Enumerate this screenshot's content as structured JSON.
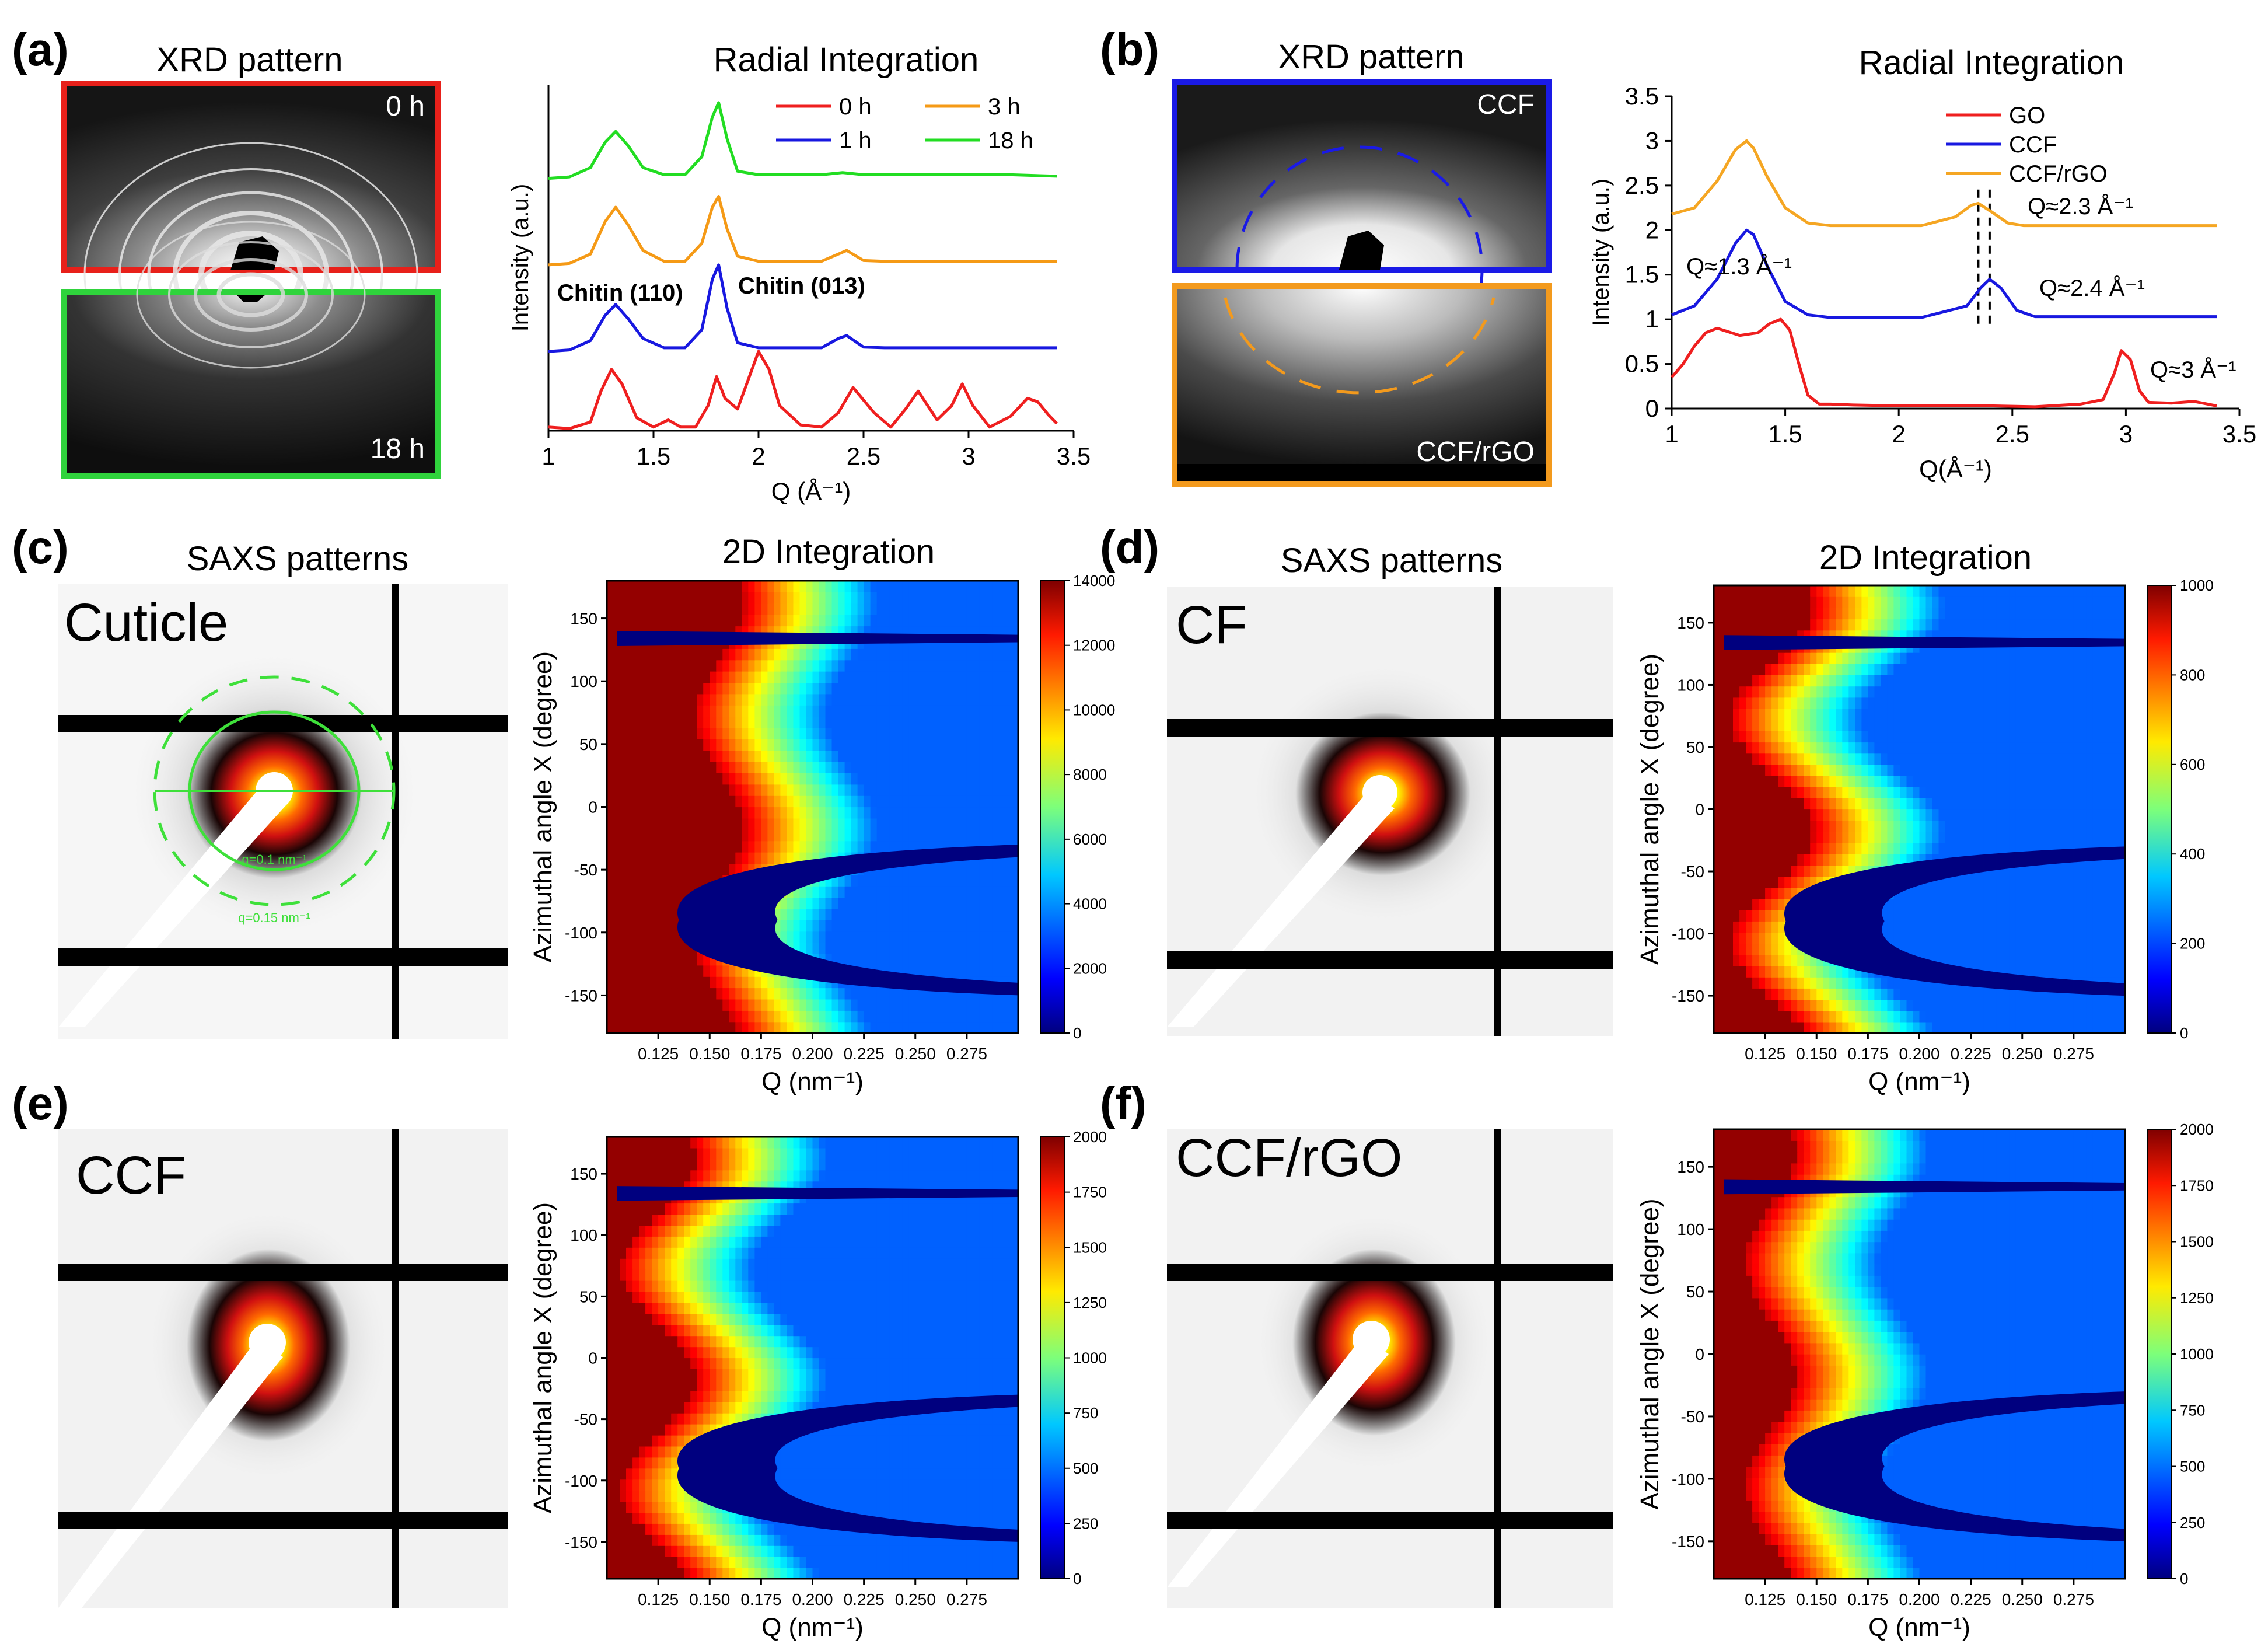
{
  "panels": {
    "a": {
      "letter": "(a)",
      "xrd_title": "XRD pattern",
      "img_top_label": "0 h",
      "img_bottom_label": "18 h",
      "frame_top_color": "#e8201a",
      "frame_bottom_color": "#2fd33c",
      "plot_title": "Radial Integration",
      "annotations": [
        "Chitin (110)",
        "Chitin (013)"
      ]
    },
    "b": {
      "letter": "(b)",
      "xrd_title": "XRD pattern",
      "img_top_label": "CCF",
      "img_bottom_label": "CCF/rGO",
      "frame_top_color": "#1a1ae6",
      "frame_bottom_color": "#f39a1d",
      "plot_title": "Radial Integration",
      "annotations": [
        "Q≈1.3 Å⁻¹",
        "Q≈2.3 Å⁻¹",
        "Q≈2.4 Å⁻¹",
        "Q≈3 Å⁻¹"
      ]
    },
    "c": {
      "letter": "(c)",
      "saxs_title": "SAXS patterns",
      "sample": "Cuticle",
      "map_title": "2D Integration",
      "ring_inner": "q=0.1 nm⁻¹",
      "ring_outer": "q=0.15 nm⁻¹"
    },
    "d": {
      "letter": "(d)",
      "saxs_title": "SAXS patterns",
      "sample": "CF",
      "map_title": "2D Integration"
    },
    "e": {
      "letter": "(e)",
      "sample": "CCF"
    },
    "f": {
      "letter": "(f)",
      "sample": "CCF/rGO"
    }
  },
  "chart_data": [
    {
      "id": "a-radial",
      "type": "line",
      "title": "Radial Integration",
      "xlabel": "Q (Å⁻¹)",
      "ylabel": "Intensity (a.u.)",
      "xlim": [
        1,
        3.5
      ],
      "xticks": [
        1,
        1.5,
        2,
        2.5,
        3,
        3.5
      ],
      "ylim": [
        0,
        4.8
      ],
      "legend_position": "top-right",
      "series": [
        {
          "name": "0 h",
          "color": "#ef1f1f",
          "offset": 0,
          "x": [
            1.0,
            1.1,
            1.2,
            1.25,
            1.3,
            1.35,
            1.42,
            1.5,
            1.57,
            1.63,
            1.7,
            1.76,
            1.8,
            1.84,
            1.9,
            1.95,
            2.0,
            2.05,
            2.1,
            2.2,
            2.3,
            2.38,
            2.45,
            2.55,
            2.63,
            2.7,
            2.76,
            2.85,
            2.92,
            2.97,
            3.02,
            3.1,
            3.2,
            3.28,
            3.33,
            3.38,
            3.42
          ],
          "y": [
            0.05,
            0.03,
            0.12,
            0.55,
            0.85,
            0.65,
            0.18,
            0.05,
            0.15,
            0.05,
            0.05,
            0.35,
            0.75,
            0.45,
            0.3,
            0.7,
            1.1,
            0.85,
            0.35,
            0.08,
            0.05,
            0.25,
            0.6,
            0.25,
            0.05,
            0.3,
            0.55,
            0.15,
            0.35,
            0.65,
            0.35,
            0.05,
            0.2,
            0.45,
            0.4,
            0.22,
            0.1
          ]
        },
        {
          "name": "1 h",
          "color": "#1818e0",
          "offset": 1.1,
          "x": [
            1.0,
            1.1,
            1.2,
            1.27,
            1.32,
            1.38,
            1.45,
            1.55,
            1.65,
            1.73,
            1.78,
            1.81,
            1.85,
            1.9,
            2.0,
            2.1,
            2.2,
            2.3,
            2.38,
            2.42,
            2.5,
            2.6,
            2.8,
            3.0,
            3.2,
            3.42
          ],
          "y": [
            0.0,
            0.02,
            0.15,
            0.5,
            0.65,
            0.45,
            0.18,
            0.05,
            0.05,
            0.3,
            1.0,
            1.2,
            0.6,
            0.12,
            0.05,
            0.05,
            0.05,
            0.05,
            0.18,
            0.22,
            0.06,
            0.05,
            0.05,
            0.05,
            0.05,
            0.05
          ]
        },
        {
          "name": "3 h",
          "color": "#f59a16",
          "offset": 2.3,
          "x": [
            1.0,
            1.1,
            1.2,
            1.27,
            1.32,
            1.38,
            1.45,
            1.55,
            1.65,
            1.73,
            1.78,
            1.81,
            1.85,
            1.9,
            2.0,
            2.1,
            2.2,
            2.3,
            2.38,
            2.42,
            2.5,
            2.6,
            2.8,
            3.0,
            3.2,
            3.42
          ],
          "y": [
            0.0,
            0.02,
            0.15,
            0.6,
            0.8,
            0.55,
            0.2,
            0.05,
            0.05,
            0.3,
            0.8,
            0.95,
            0.5,
            0.12,
            0.05,
            0.05,
            0.05,
            0.05,
            0.15,
            0.2,
            0.06,
            0.05,
            0.05,
            0.05,
            0.05,
            0.05
          ]
        },
        {
          "name": "18 h",
          "color": "#22dd22",
          "offset": 3.5,
          "x": [
            1.0,
            1.1,
            1.2,
            1.27,
            1.32,
            1.38,
            1.45,
            1.55,
            1.65,
            1.73,
            1.78,
            1.81,
            1.85,
            1.9,
            2.0,
            2.1,
            2.2,
            2.3,
            2.4,
            2.5,
            2.6,
            2.8,
            3.0,
            3.2,
            3.42
          ],
          "y": [
            0.0,
            0.02,
            0.15,
            0.5,
            0.65,
            0.45,
            0.15,
            0.05,
            0.05,
            0.3,
            0.85,
            1.05,
            0.55,
            0.1,
            0.05,
            0.05,
            0.05,
            0.05,
            0.08,
            0.05,
            0.05,
            0.05,
            0.05,
            0.05,
            0.03
          ]
        }
      ]
    },
    {
      "id": "b-radial",
      "type": "line",
      "title": "Radial Integration",
      "xlabel": "Q(Å⁻¹)",
      "ylabel": "Intensity (a.u.)",
      "xlim": [
        1,
        3.5
      ],
      "xticks": [
        1,
        1.5,
        2,
        2.5,
        3,
        3.5
      ],
      "ylim": [
        0,
        3.5
      ],
      "yticks": [
        0,
        0.5,
        1,
        1.5,
        2,
        2.5,
        3,
        3.5
      ],
      "vlines": [
        2.35,
        2.4
      ],
      "legend_position": "top-right",
      "series": [
        {
          "name": "GO",
          "color": "#ef1f1f",
          "offset": 0,
          "x": [
            1.0,
            1.05,
            1.1,
            1.15,
            1.2,
            1.3,
            1.38,
            1.43,
            1.48,
            1.52,
            1.56,
            1.6,
            1.65,
            1.7,
            1.8,
            2.0,
            2.2,
            2.4,
            2.6,
            2.8,
            2.9,
            2.95,
            2.98,
            3.02,
            3.06,
            3.1,
            3.2,
            3.3,
            3.4
          ],
          "y": [
            0.35,
            0.5,
            0.7,
            0.85,
            0.9,
            0.82,
            0.85,
            0.95,
            1.0,
            0.88,
            0.5,
            0.15,
            0.05,
            0.05,
            0.04,
            0.03,
            0.03,
            0.03,
            0.02,
            0.05,
            0.1,
            0.4,
            0.65,
            0.55,
            0.2,
            0.07,
            0.06,
            0.08,
            0.03
          ]
        },
        {
          "name": "CCF",
          "color": "#1818e0",
          "offset": 0,
          "x": [
            1.0,
            1.1,
            1.2,
            1.28,
            1.33,
            1.36,
            1.42,
            1.5,
            1.6,
            1.7,
            1.9,
            2.1,
            2.3,
            2.36,
            2.4,
            2.45,
            2.52,
            2.6,
            2.8,
            3.0,
            3.2,
            3.4
          ],
          "y": [
            1.05,
            1.15,
            1.45,
            1.85,
            2.0,
            1.95,
            1.6,
            1.2,
            1.05,
            1.02,
            1.02,
            1.02,
            1.15,
            1.35,
            1.45,
            1.35,
            1.1,
            1.03,
            1.03,
            1.03,
            1.03,
            1.03
          ]
        },
        {
          "name": "CCF/rGO",
          "color": "#f5a623",
          "offset": 0,
          "x": [
            1.0,
            1.1,
            1.2,
            1.28,
            1.33,
            1.36,
            1.42,
            1.5,
            1.6,
            1.7,
            1.9,
            2.1,
            2.25,
            2.32,
            2.35,
            2.4,
            2.48,
            2.55,
            2.7,
            2.9,
            3.1,
            3.4
          ],
          "y": [
            2.18,
            2.25,
            2.55,
            2.9,
            3.0,
            2.92,
            2.6,
            2.25,
            2.08,
            2.05,
            2.05,
            2.05,
            2.15,
            2.28,
            2.3,
            2.22,
            2.08,
            2.05,
            2.05,
            2.05,
            2.05,
            2.05
          ]
        }
      ]
    },
    {
      "id": "c-map",
      "type": "heatmap",
      "title": "2D Integration",
      "xlabel": "Q (nm⁻¹)",
      "ylabel": "Azimuthal angle Χ (degree)",
      "xlim": [
        0.1,
        0.3
      ],
      "xticks": [
        0.125,
        0.15,
        0.175,
        0.2,
        0.225,
        0.25,
        0.275
      ],
      "ylim": [
        -180,
        180
      ],
      "yticks": [
        -150,
        -100,
        -50,
        0,
        50,
        100,
        150
      ],
      "colorbar": [
        0,
        2000,
        4000,
        6000,
        8000,
        10000,
        12000,
        14000
      ],
      "colormap": "jet",
      "red_edge_q": 0.155,
      "knee_amplitude": 0.012
    },
    {
      "id": "d-map",
      "type": "heatmap",
      "title": "2D Integration",
      "xlabel": "Q (nm⁻¹)",
      "ylabel": "Azimuthal angle Χ (degree)",
      "xlim": [
        0.1,
        0.3
      ],
      "xticks": [
        0.125,
        0.15,
        0.175,
        0.2,
        0.225,
        0.25,
        0.275
      ],
      "ylim": [
        -180,
        180
      ],
      "yticks": [
        -150,
        -100,
        -50,
        0,
        50,
        100,
        150
      ],
      "colorbar": [
        0,
        200,
        400,
        600,
        800,
        1000
      ],
      "colormap": "jet",
      "red_edge_q": 0.128,
      "knee_amplitude": 0.02
    },
    {
      "id": "e-map",
      "type": "heatmap",
      "title": "",
      "xlabel": "Q (nm⁻¹)",
      "ylabel": "Azimuthal angle Χ (degree)",
      "xlim": [
        0.1,
        0.3
      ],
      "xticks": [
        0.125,
        0.15,
        0.175,
        0.2,
        0.225,
        0.25,
        0.275
      ],
      "ylim": [
        -180,
        180
      ],
      "yticks": [
        -150,
        -100,
        -50,
        0,
        50,
        100,
        150
      ],
      "colorbar": [
        0,
        250,
        500,
        750,
        1000,
        1250,
        1500,
        1750,
        2000
      ],
      "colormap": "jet",
      "red_edge_q": 0.125,
      "knee_amplitude": 0.018
    },
    {
      "id": "f-map",
      "type": "heatmap",
      "title": "",
      "xlabel": "Q (nm⁻¹)",
      "ylabel": "Azimuthal angle Χ (degree)",
      "xlim": [
        0.1,
        0.3
      ],
      "xticks": [
        0.125,
        0.15,
        0.175,
        0.2,
        0.225,
        0.25,
        0.275
      ],
      "ylim": [
        -180,
        180
      ],
      "yticks": [
        -150,
        -100,
        -50,
        0,
        50,
        100,
        150
      ],
      "colorbar": [
        0,
        250,
        500,
        750,
        1000,
        1250,
        1500,
        1750,
        2000
      ],
      "colormap": "jet",
      "red_edge_q": 0.128,
      "knee_amplitude": 0.012
    }
  ]
}
